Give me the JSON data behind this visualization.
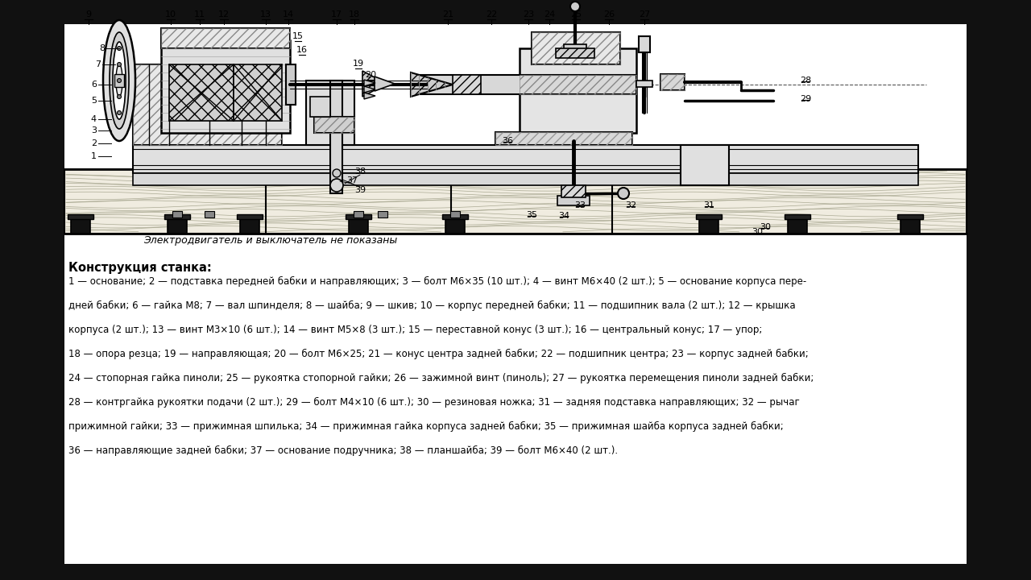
{
  "bg_color": "#ffffff",
  "outer_bg": "#1a1a1a",
  "drawing_bg": "#ffffff",
  "line_color": "#000000",
  "hatch_color": "#000000",
  "caption": "Электродвигатель и выключатель не показаны",
  "section_title": "Конструкция станка:",
  "desc_lines": [
    "1 — основание; 2 — подставка передней бабки и направляющих; 3 — болт М6×35 (10 шт.); 4 — винт М6×40 (2 шт.); 5 — основание корпуса пере-",
    "дней бабки; 6 — гайка М8; 7 — вал шпинделя; 8 — шайба; 9 — шкив; 10 — корпус передней бабки; 11 — подшипник вала (2 шт.); 12 — крышка",
    "корпуса (2 шт.); 13 — винт М3×10 (6 шт.); 14 — винт М5×8 (3 шт.); 15 — переставной конус (3 шт.); 16 — центральный конус; 17 — упор;",
    "18 — опора резца; 19 — направляющая; 20 — болт М6×25; 21 — конус центра задней бабки; 22 — подшипник центра; 23 — корпус задней бабки;",
    "24 — стопорная гайка пиноли; 25 — рукоятка стопорной гайки; 26 — зажимной винт (пиноль); 27 — рукоятка перемещения пиноли задней бабки;",
    "28 — контргайка рукоятки подачи (2 шт.); 29 — болт М4×10 (6 шт.); 30 — резиновая ножка; 31 — задняя подставка направляющих; 32 — рычаг",
    "прижимной гайки; 33 — прижимная шпилька; 34 — прижимная гайка корпуса задней бабки; 35 — прижимная шайба корпуса задней бабки;",
    "36 — направляющие задней бабки; 37 — основание подручника; 38 — планшайба; 39 — болт М6×40 (2 шт.)."
  ]
}
